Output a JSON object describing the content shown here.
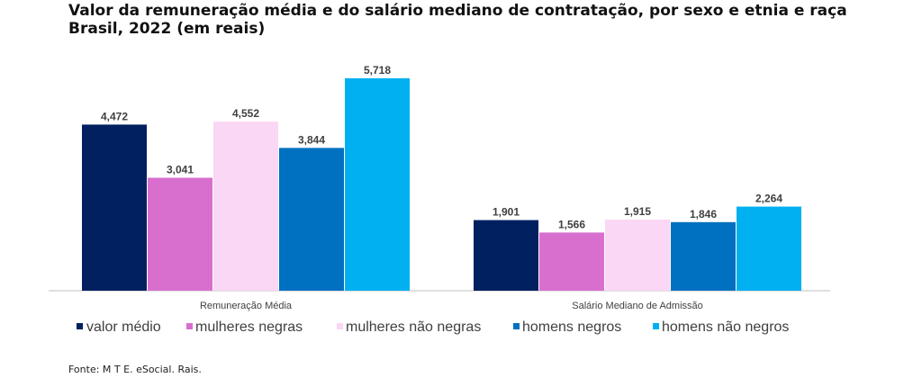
{
  "title_line1": "Valor da remuneração média e do salário mediano de contratação, por sexo e etnia e raça",
  "title_line2": "Brasil, 2022 (em reais)",
  "source": "Fonte: M T E. eSocial. Rais.",
  "chart_data": {
    "type": "bar",
    "categories": [
      "Remuneração Média",
      "Salário Mediano de Admissão"
    ],
    "series": [
      {
        "name": "valor médio",
        "values": [
          4472,
          1901
        ],
        "labels": [
          "4,472",
          "1,901"
        ],
        "color": "#002060"
      },
      {
        "name": "mulheres negras",
        "values": [
          3041,
          1566
        ],
        "labels": [
          "3,041",
          "1,566"
        ],
        "color": "#d86fcf"
      },
      {
        "name": "mulheres não negras",
        "values": [
          4552,
          1915
        ],
        "labels": [
          "4,552",
          "1,915"
        ],
        "color": "#fad7f4"
      },
      {
        "name": "homens negros",
        "values": [
          3844,
          1846
        ],
        "labels": [
          "3,844",
          "1,846"
        ],
        "color": "#0070c0"
      },
      {
        "name": "homens não negros",
        "values": [
          5718,
          2264
        ],
        "labels": [
          "5,718",
          "2,264"
        ],
        "color": "#00b0f0"
      }
    ],
    "ylim": [
      0,
      5718
    ],
    "legend": "bottom",
    "grid": false
  }
}
